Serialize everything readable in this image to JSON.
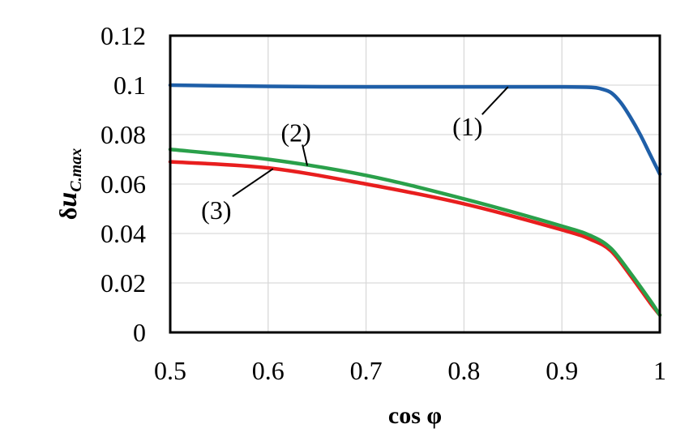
{
  "chart_data": {
    "type": "line",
    "xlabel": "cos φ",
    "ylabel": "δuC.max",
    "ylabel_parts": {
      "base": "δ",
      "var": "u",
      "sub": "C.max"
    },
    "xlim": [
      0.5,
      1.0
    ],
    "ylim": [
      0,
      0.12
    ],
    "x_ticks": [
      "0.5",
      "0.6",
      "0.7",
      "0.8",
      "0.9",
      "1"
    ],
    "y_ticks": [
      "0",
      "0.02",
      "0.04",
      "0.06",
      "0.08",
      "0.1",
      "0.12"
    ],
    "grid": true,
    "legend": "none",
    "series": [
      {
        "label": "(1)",
        "color": "#1f5fa8",
        "x": [
          0.5,
          0.6,
          0.7,
          0.8,
          0.9,
          0.93,
          0.94,
          0.95,
          0.96,
          0.97,
          0.98,
          0.99,
          1.0
        ],
        "y": [
          0.1,
          0.0995,
          0.0993,
          0.0993,
          0.0993,
          0.0991,
          0.0985,
          0.097,
          0.093,
          0.087,
          0.08,
          0.072,
          0.064
        ]
      },
      {
        "label": "(2)",
        "color": "#2aa04a",
        "x": [
          0.5,
          0.6,
          0.7,
          0.8,
          0.9,
          0.93,
          0.95,
          0.97,
          0.99,
          1.0
        ],
        "y": [
          0.074,
          0.07,
          0.0635,
          0.054,
          0.043,
          0.039,
          0.034,
          0.024,
          0.013,
          0.007
        ]
      },
      {
        "label": "(3)",
        "color": "#e81e1e",
        "x": [
          0.5,
          0.6,
          0.7,
          0.8,
          0.9,
          0.93,
          0.95,
          0.97,
          0.99,
          1.0
        ],
        "y": [
          0.069,
          0.0665,
          0.06,
          0.052,
          0.0415,
          0.0375,
          0.033,
          0.023,
          0.012,
          0.007
        ]
      }
    ],
    "annotations": [
      {
        "text": "(1)",
        "series": 0,
        "at_x": 0.845
      },
      {
        "text": "(2)",
        "series": 1,
        "at_x": 0.64
      },
      {
        "text": "(3)",
        "series": 2,
        "at_x": 0.605
      }
    ]
  }
}
